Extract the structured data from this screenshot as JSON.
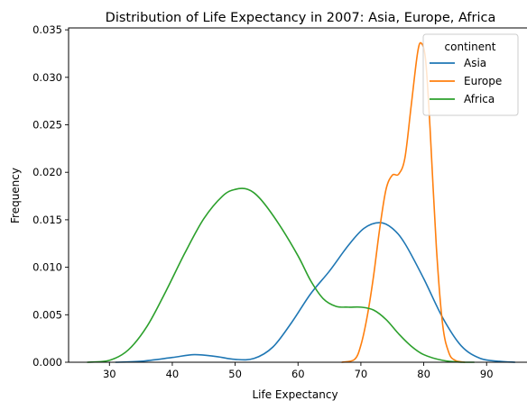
{
  "chart_data": {
    "type": "line",
    "title": "Distribution of Life Expectancy in 2007: Asia, Europe, Africa",
    "xlabel": "Life Expectancy",
    "ylabel": "Frequency",
    "xlim": [
      23.5,
      97.0
    ],
    "ylim": [
      0,
      0.0352
    ],
    "xticks": [
      30,
      40,
      50,
      60,
      70,
      80,
      90
    ],
    "xtick_labels": [
      "30",
      "40",
      "50",
      "60",
      "70",
      "80",
      "90"
    ],
    "yticks": [
      0,
      0.005,
      0.01,
      0.015,
      0.02,
      0.025,
      0.03,
      0.035
    ],
    "ytick_labels": [
      "0.000",
      "0.005",
      "0.010",
      "0.015",
      "0.020",
      "0.025",
      "0.030",
      "0.035"
    ],
    "grid": false,
    "legend": {
      "title": "continent",
      "placement": "top-right"
    },
    "series": [
      {
        "name": "Asia",
        "color": "#1f77b4",
        "points": [
          [
            31,
            0.0
          ],
          [
            35,
            0.0001
          ],
          [
            40,
            0.0005
          ],
          [
            43.5,
            0.0008
          ],
          [
            47,
            0.0006
          ],
          [
            50,
            0.0003
          ],
          [
            53,
            0.0004
          ],
          [
            56,
            0.0016
          ],
          [
            59,
            0.0042
          ],
          [
            62,
            0.0072
          ],
          [
            65,
            0.0096
          ],
          [
            68,
            0.0123
          ],
          [
            70.5,
            0.0141
          ],
          [
            73,
            0.0147
          ],
          [
            75,
            0.0141
          ],
          [
            77,
            0.0125
          ],
          [
            80,
            0.0088
          ],
          [
            83,
            0.0047
          ],
          [
            86,
            0.0017
          ],
          [
            89,
            0.0004
          ],
          [
            92,
            0.0001
          ],
          [
            94.5,
            0.0
          ]
        ]
      },
      {
        "name": "Europe",
        "color": "#ff7f0e",
        "points": [
          [
            67,
            0.0
          ],
          [
            69,
            0.0003
          ],
          [
            70,
            0.0018
          ],
          [
            71,
            0.0048
          ],
          [
            72,
            0.009
          ],
          [
            73,
            0.0141
          ],
          [
            74,
            0.0182
          ],
          [
            75,
            0.0197
          ],
          [
            76,
            0.0198
          ],
          [
            77,
            0.0215
          ],
          [
            78,
            0.027
          ],
          [
            79,
            0.0325
          ],
          [
            79.6,
            0.0336
          ],
          [
            80.3,
            0.0318
          ],
          [
            81,
            0.0247
          ],
          [
            82,
            0.0122
          ],
          [
            83,
            0.004
          ],
          [
            84,
            0.001
          ],
          [
            85,
            0.0002
          ],
          [
            86.5,
            0.0
          ]
        ]
      },
      {
        "name": "Africa",
        "color": "#2ca02c",
        "points": [
          [
            26.5,
            0.0
          ],
          [
            30,
            0.0002
          ],
          [
            33,
            0.0013
          ],
          [
            36,
            0.0038
          ],
          [
            39,
            0.0075
          ],
          [
            42,
            0.0115
          ],
          [
            45,
            0.0151
          ],
          [
            48,
            0.0175
          ],
          [
            50,
            0.0182
          ],
          [
            52,
            0.0182
          ],
          [
            54,
            0.0172
          ],
          [
            57,
            0.0145
          ],
          [
            60,
            0.0112
          ],
          [
            62,
            0.0086
          ],
          [
            64,
            0.0067
          ],
          [
            66,
            0.0059
          ],
          [
            68,
            0.0058
          ],
          [
            70,
            0.0058
          ],
          [
            72,
            0.0055
          ],
          [
            74,
            0.0045
          ],
          [
            76,
            0.003
          ],
          [
            78,
            0.0017
          ],
          [
            80,
            0.0008
          ],
          [
            83,
            0.0002
          ],
          [
            86,
            0.0
          ],
          [
            88,
            0.0
          ]
        ]
      }
    ]
  }
}
